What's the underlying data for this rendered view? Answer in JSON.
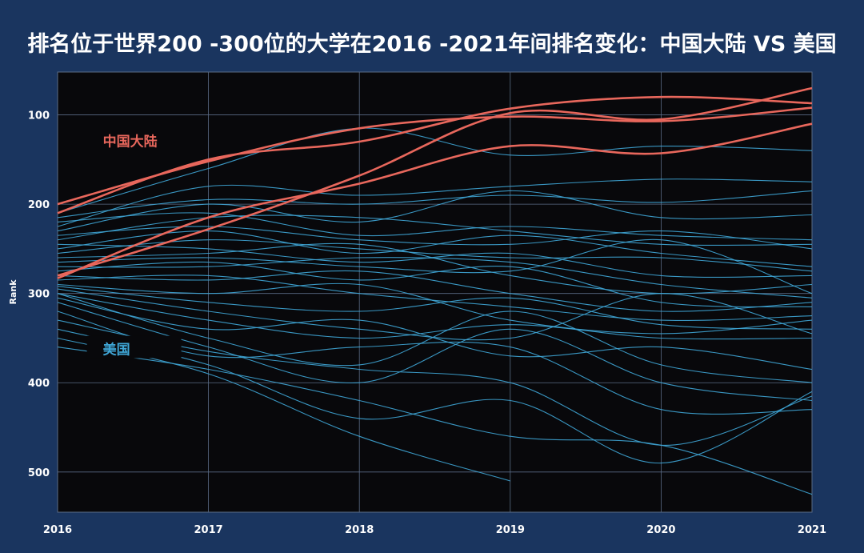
{
  "title": "排名位于世界200 -300位的大学在2016 -2021年间排名变化：中国大陆 VS 美国",
  "colors": {
    "background": "#1a355f",
    "plot_background": "#08080b",
    "grid": "#5a6b86",
    "china": "#e8675c",
    "usa": "#3fa6d6"
  },
  "chart_data": {
    "type": "line",
    "title": "排名位于世界200 -300位的大学在2016 -2021年间排名变化：中国大陆 VS 美国",
    "xlabel": "",
    "ylabel": "Rank",
    "x": [
      2016,
      2017,
      2018,
      2019,
      2020,
      2021
    ],
    "x_tick_labels": [
      "2016",
      "2017",
      "2018",
      "2019",
      "2020",
      "2021"
    ],
    "y_ticks": [
      100,
      200,
      300,
      400,
      500
    ],
    "y_tick_labels": [
      "100",
      "200",
      "300",
      "400",
      "500"
    ],
    "ylim": [
      52,
      545
    ],
    "y_inverted": true,
    "grid": true,
    "annotations": [
      {
        "text": "中国大陆",
        "group": "china",
        "x": 2016.3,
        "y": 135
      },
      {
        "text": "美国",
        "group": "usa",
        "x": 2016.3,
        "y": 368
      }
    ],
    "series": [
      {
        "group": "china",
        "values": [
          200,
          152,
          115,
          102,
          107,
          92
        ]
      },
      {
        "group": "china",
        "values": [
          210,
          150,
          130,
          93,
          80,
          87
        ]
      },
      {
        "group": "china",
        "values": [
          280,
          228,
          168,
          98,
          105,
          70
        ]
      },
      {
        "group": "china",
        "values": [
          283,
          215,
          177,
          135,
          143,
          110
        ]
      },
      {
        "group": "usa",
        "values": [
          210,
          160,
          115,
          145,
          135,
          140
        ]
      },
      {
        "group": "usa",
        "values": [
          225,
          180,
          190,
          180,
          172,
          175
        ]
      },
      {
        "group": "usa",
        "values": [
          215,
          195,
          200,
          190,
          198,
          185
        ]
      },
      {
        "group": "usa",
        "values": [
          230,
          200,
          220,
          185,
          215,
          212
        ]
      },
      {
        "group": "usa",
        "values": [
          220,
          210,
          235,
          225,
          235,
          240
        ]
      },
      {
        "group": "usa",
        "values": [
          240,
          215,
          215,
          230,
          245,
          245
        ]
      },
      {
        "group": "usa",
        "values": [
          235,
          225,
          240,
          245,
          230,
          250
        ]
      },
      {
        "group": "usa",
        "values": [
          250,
          230,
          255,
          235,
          255,
          270
        ]
      },
      {
        "group": "usa",
        "values": [
          255,
          240,
          250,
          260,
          260,
          275
        ]
      },
      {
        "group": "usa",
        "values": [
          245,
          250,
          265,
          255,
          280,
          280
        ]
      },
      {
        "group": "usa",
        "values": [
          260,
          255,
          245,
          280,
          300,
          290
        ]
      },
      {
        "group": "usa",
        "values": [
          265,
          260,
          270,
          275,
          240,
          300
        ]
      },
      {
        "group": "usa",
        "values": [
          270,
          270,
          260,
          265,
          290,
          305
        ]
      },
      {
        "group": "usa",
        "values": [
          275,
          265,
          285,
          270,
          310,
          315
        ]
      },
      {
        "group": "usa",
        "values": [
          280,
          285,
          275,
          300,
          320,
          310
        ]
      },
      {
        "group": "usa",
        "values": [
          285,
          280,
          300,
          315,
          330,
          325
        ]
      },
      {
        "group": "usa",
        "values": [
          290,
          300,
          290,
          330,
          345,
          330
        ]
      },
      {
        "group": "usa",
        "values": [
          292,
          310,
          320,
          305,
          335,
          340
        ]
      },
      {
        "group": "usa",
        "values": [
          295,
          320,
          340,
          350,
          300,
          345
        ]
      },
      {
        "group": "usa",
        "values": [
          300,
          330,
          350,
          335,
          350,
          350
        ]
      },
      {
        "group": "usa",
        "values": [
          305,
          340,
          330,
          370,
          360,
          385
        ]
      },
      {
        "group": "usa",
        "values": [
          300,
          350,
          380,
          320,
          380,
          400
        ]
      },
      {
        "group": "usa",
        "values": [
          310,
          360,
          400,
          340,
          400,
          420
        ]
      },
      {
        "group": "usa",
        "values": [
          320,
          370,
          360,
          360,
          430,
          430
        ]
      },
      {
        "group": "usa",
        "values": [
          330,
          365,
          385,
          400,
          470,
          415
        ]
      },
      {
        "group": "usa",
        "values": [
          340,
          380,
          440,
          420,
          490,
          410
        ]
      },
      {
        "group": "usa",
        "values": [
          350,
          390,
          460,
          510,
          null,
          null
        ]
      },
      {
        "group": "usa",
        "values": [
          360,
          385,
          420,
          460,
          470,
          525
        ]
      }
    ]
  }
}
